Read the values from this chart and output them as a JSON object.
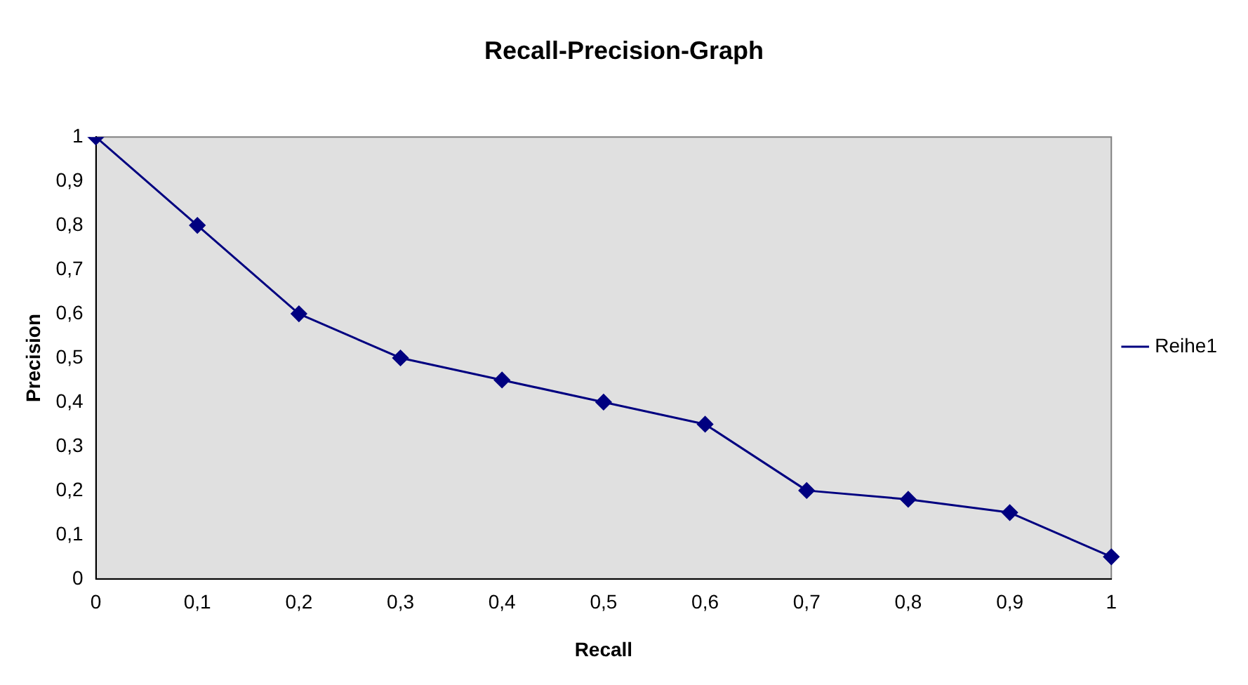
{
  "chart_data": {
    "type": "line",
    "title": "Recall-Precision-Graph",
    "xlabel": "Recall",
    "ylabel": "Precision",
    "categories": [
      "0",
      "0,1",
      "0,2",
      "0,3",
      "0,4",
      "0,5",
      "0,6",
      "0,7",
      "0,8",
      "0,9",
      "1"
    ],
    "series": [
      {
        "name": "Reihe1",
        "color": "#000080",
        "values": [
          1,
          0.8,
          0.6,
          0.5,
          0.45,
          0.4,
          0.35,
          0.2,
          0.18,
          0.15,
          0.05
        ]
      }
    ],
    "ylim": [
      0,
      1
    ],
    "yticks": [
      0,
      {
        "value": 0.1,
        "label": "0,1"
      },
      {
        "value": 0.2,
        "label": "0,2"
      },
      {
        "value": 0.3,
        "label": "0,3"
      },
      {
        "value": 0.4,
        "label": "0,4"
      },
      {
        "value": 0.5,
        "label": "0,5"
      },
      {
        "value": 0.6,
        "label": "0,6"
      },
      {
        "value": 0.7,
        "label": "0,7"
      },
      {
        "value": 0.8,
        "label": "0,8"
      },
      {
        "value": 0.9,
        "label": "0,9"
      },
      1
    ],
    "grid": false,
    "legend": "right",
    "marker": "diamond",
    "line_style": "solid"
  }
}
